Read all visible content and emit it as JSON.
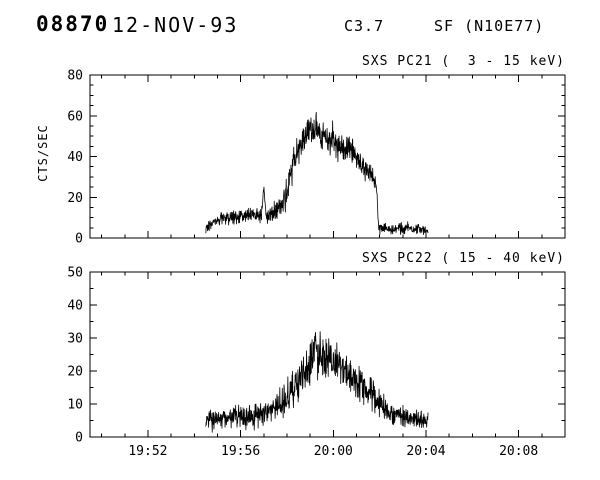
{
  "header": {
    "event_number": "08870",
    "date": "12-NOV-93",
    "goes_class": "C3.7",
    "flare_type": "SF (N10E77)"
  },
  "colors": {
    "foreground": "#000000",
    "background": "#ffffff"
  },
  "chart_data": [
    {
      "type": "line",
      "title": "SXS PC21 (  3 - 15 keV)",
      "ylabel": "CTS/SEC",
      "ylim": [
        0,
        80
      ],
      "yticks": [
        0,
        20,
        40,
        60,
        80
      ],
      "y_minor_step": 5,
      "xlim": [
        49.5,
        70
      ],
      "x_unit": "minutes after 19:00 UT",
      "xticks": [
        {
          "value": 52,
          "label": "19:52"
        },
        {
          "value": 56,
          "label": "19:56"
        },
        {
          "value": 60,
          "label": "20:00"
        },
        {
          "value": 64,
          "label": "20:04"
        },
        {
          "value": 68,
          "label": "20:08"
        }
      ],
      "x_minor_step": 1,
      "grid": false,
      "series": [
        {
          "name": "SXS PC21",
          "envelope_t_mean_noise": [
            [
              54.5,
              5,
              3
            ],
            [
              55.0,
              9,
              3
            ],
            [
              55.5,
              10,
              4
            ],
            [
              56.3,
              11,
              4
            ],
            [
              56.9,
              11,
              4
            ],
            [
              57.0,
              26,
              3
            ],
            [
              57.1,
              11,
              4
            ],
            [
              57.6,
              13,
              5
            ],
            [
              58.0,
              22,
              7
            ],
            [
              58.3,
              38,
              8
            ],
            [
              58.7,
              48,
              8
            ],
            [
              59.0,
              52,
              8
            ],
            [
              59.3,
              54,
              8
            ],
            [
              59.7,
              49,
              8
            ],
            [
              60.2,
              46,
              8
            ],
            [
              60.7,
              44,
              7
            ],
            [
              61.2,
              36,
              6
            ],
            [
              61.6,
              31,
              5
            ],
            [
              61.85,
              28,
              4
            ],
            [
              61.95,
              6,
              3
            ],
            [
              62.4,
              4,
              2.5
            ],
            [
              63.2,
              5,
              2.5
            ],
            [
              64.1,
              4,
              2.5
            ]
          ]
        }
      ]
    },
    {
      "type": "line",
      "title": "SXS PC22 ( 15 - 40 keV)",
      "ylabel": "",
      "ylim": [
        0,
        50
      ],
      "yticks": [
        0,
        10,
        20,
        30,
        40,
        50
      ],
      "y_minor_step": 5,
      "xlim": [
        49.5,
        70
      ],
      "x_unit": "minutes after 19:00 UT",
      "xticks": [
        {
          "value": 52,
          "label": "19:52"
        },
        {
          "value": 56,
          "label": "19:56"
        },
        {
          "value": 60,
          "label": "20:00"
        },
        {
          "value": 64,
          "label": "20:04"
        },
        {
          "value": 68,
          "label": "20:08"
        }
      ],
      "x_minor_step": 1,
      "grid": false,
      "series": [
        {
          "name": "SXS PC22",
          "envelope_t_mean_noise": [
            [
              54.5,
              5,
              3
            ],
            [
              55.5,
              6,
              3
            ],
            [
              56.5,
              6,
              4
            ],
            [
              57.3,
              8,
              4
            ],
            [
              57.9,
              11,
              5
            ],
            [
              58.4,
              15,
              6
            ],
            [
              58.9,
              21,
              7
            ],
            [
              59.2,
              27,
              9
            ],
            [
              59.5,
              25,
              7
            ],
            [
              60.0,
              23,
              7
            ],
            [
              60.5,
              20,
              6
            ],
            [
              61.0,
              17,
              6
            ],
            [
              61.5,
              14,
              5
            ],
            [
              62.0,
              10,
              4
            ],
            [
              62.5,
              7,
              3
            ],
            [
              63.2,
              6,
              3
            ],
            [
              64.1,
              5,
              3
            ]
          ]
        }
      ]
    }
  ]
}
